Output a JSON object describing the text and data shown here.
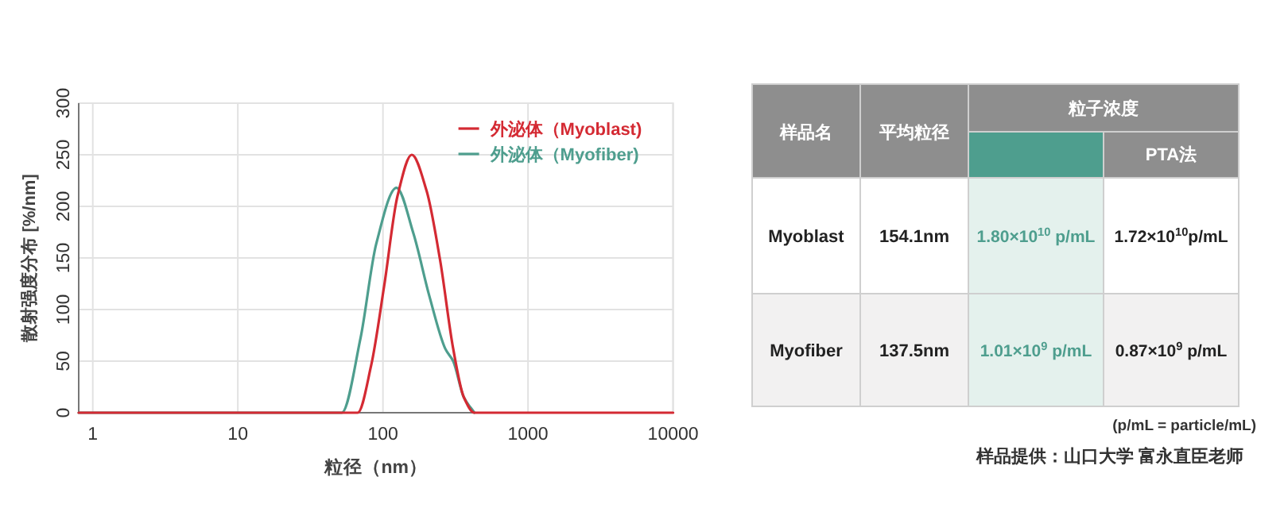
{
  "chart_data": [
    {
      "type": "line",
      "xlabel": "粒径（nm）",
      "ylabel": "散射强度分布 [%/nm]",
      "log": "x",
      "xlim": [
        0.8,
        10000
      ],
      "xticks": [
        1,
        10,
        100,
        1000,
        10000
      ],
      "ylim": [
        0,
        300
      ],
      "yticks": [
        0,
        50,
        100,
        150,
        200,
        250,
        300
      ],
      "grid": true,
      "legend": "top right",
      "series": [
        {
          "name": "外泌体（Myoblast)",
          "color": "#d42a33",
          "x": [
            0.8,
            10,
            67,
            83,
            102,
            126,
            158,
            200,
            247,
            305,
            361,
            427,
            1000,
            10000
          ],
          "values": [
            0,
            0,
            0,
            46,
            123,
            210,
            250,
            215,
            149,
            62,
            15,
            0,
            0,
            0
          ]
        },
        {
          "name": "外泌体（Myofiber)",
          "color": "#4e9e8e",
          "x": [
            0.8,
            10,
            52,
            70,
            90,
            124,
            162,
            209,
            269,
            305,
            361,
            427
          ],
          "values": [
            0,
            0,
            0,
            72,
            164,
            218,
            174,
            113,
            62,
            50,
            15,
            0
          ]
        }
      ]
    },
    {
      "type": "other",
      "annotations": [
        "样品名",
        "平均粒径",
        "粒子浓度",
        "PTA法",
        "Myoblast",
        "154.1nm",
        "1.80×10$^{10}$ p/mL",
        "1.72×10$^{10}$p/mL",
        "Myofiber",
        "137.5nm",
        "1.01×10$^{9}$ p/mL",
        "0.87×10$^{9}$ p/mL",
        "(p/mL  = particle/mL)",
        "样品提供：山口大学 富永直臣老师"
      ]
    }
  ]
}
